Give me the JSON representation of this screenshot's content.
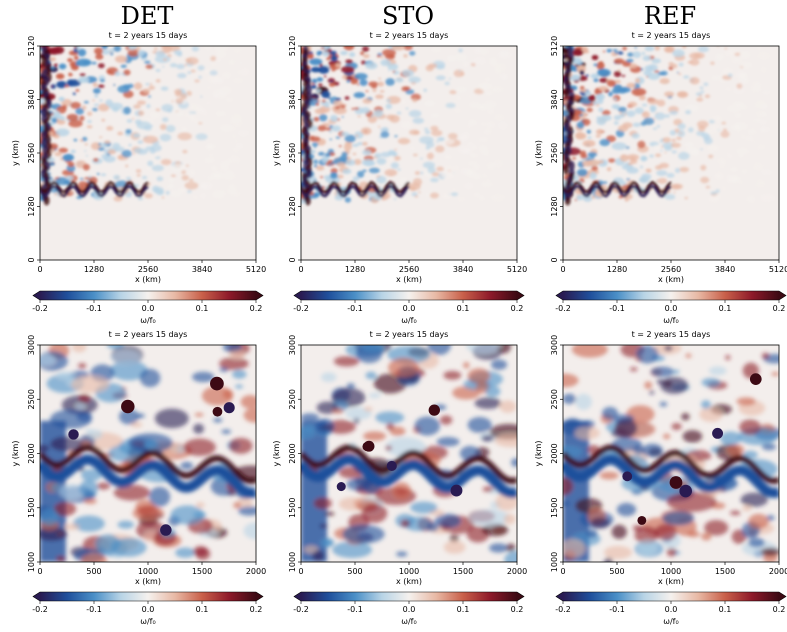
{
  "columns": [
    "DET",
    "STO",
    "REF"
  ],
  "panel_title": "t = 2 years 15 days",
  "colorbar": {
    "label": "ω/f₀",
    "ticks": [
      "-0.2",
      "-0.1",
      "0.0",
      "0.1",
      "0.2"
    ],
    "range": [
      -0.2,
      0.2
    ],
    "colormap": [
      "#2a1b52",
      "#1f4f9b",
      "#4a8fc7",
      "#b8d4e6",
      "#f5f1ee",
      "#e8b9a5",
      "#c9604a",
      "#8e1a2a",
      "#3d0a14"
    ]
  },
  "chart_data": [
    {
      "type": "heatmap",
      "panel": "DET full domain",
      "title": "t = 2 years 15 days",
      "xlabel": "x (km)",
      "ylabel": "y (km)",
      "xlim": [
        0,
        5120
      ],
      "ylim": [
        0,
        5120
      ],
      "xticks": [
        "0",
        "1280",
        "2560",
        "3840",
        "5120"
      ],
      "yticks": [
        "0",
        "1280",
        "2560",
        "3840",
        "5120"
      ]
    },
    {
      "type": "heatmap",
      "panel": "STO full domain",
      "title": "t = 2 years 15 days",
      "xlabel": "x (km)",
      "ylabel": "y (km)",
      "xlim": [
        0,
        5120
      ],
      "ylim": [
        0,
        5120
      ],
      "xticks": [
        "0",
        "1280",
        "2560",
        "3840",
        "5120"
      ],
      "yticks": [
        "0",
        "1280",
        "2560",
        "3840",
        "5120"
      ]
    },
    {
      "type": "heatmap",
      "panel": "REF full domain",
      "title": "t = 2 years 15 days",
      "xlabel": "x (km)",
      "ylabel": "y (km)",
      "xlim": [
        0,
        5120
      ],
      "ylim": [
        0,
        5120
      ],
      "xticks": [
        "0",
        "1280",
        "2560",
        "3840",
        "5120"
      ],
      "yticks": [
        "0",
        "1280",
        "2560",
        "3840",
        "5120"
      ]
    },
    {
      "type": "heatmap",
      "panel": "DET zoom",
      "title": "t = 2 years 15 days",
      "xlabel": "x (km)",
      "ylabel": "y (km)",
      "xlim": [
        0,
        2000
      ],
      "ylim": [
        1000,
        3000
      ],
      "xticks": [
        "0",
        "500",
        "1000",
        "1500",
        "2000"
      ],
      "yticks": [
        "1000",
        "1500",
        "2000",
        "2500",
        "3000"
      ]
    },
    {
      "type": "heatmap",
      "panel": "STO zoom",
      "title": "t = 2 years 15 days",
      "xlabel": "x (km)",
      "ylabel": "y (km)",
      "xlim": [
        0,
        2000
      ],
      "ylim": [
        1000,
        3000
      ],
      "xticks": [
        "0",
        "500",
        "1000",
        "1500",
        "2000"
      ],
      "yticks": [
        "1000",
        "1500",
        "2000",
        "2500",
        "3000"
      ]
    },
    {
      "type": "heatmap",
      "panel": "REF zoom",
      "title": "t = 2 years 15 days",
      "xlabel": "x (km)",
      "ylabel": "y (km)",
      "xlim": [
        0,
        2000
      ],
      "ylim": [
        1000,
        3000
      ],
      "xticks": [
        "0",
        "500",
        "1000",
        "1500",
        "2000"
      ],
      "yticks": [
        "1000",
        "1500",
        "2000",
        "2500",
        "3000"
      ]
    }
  ]
}
